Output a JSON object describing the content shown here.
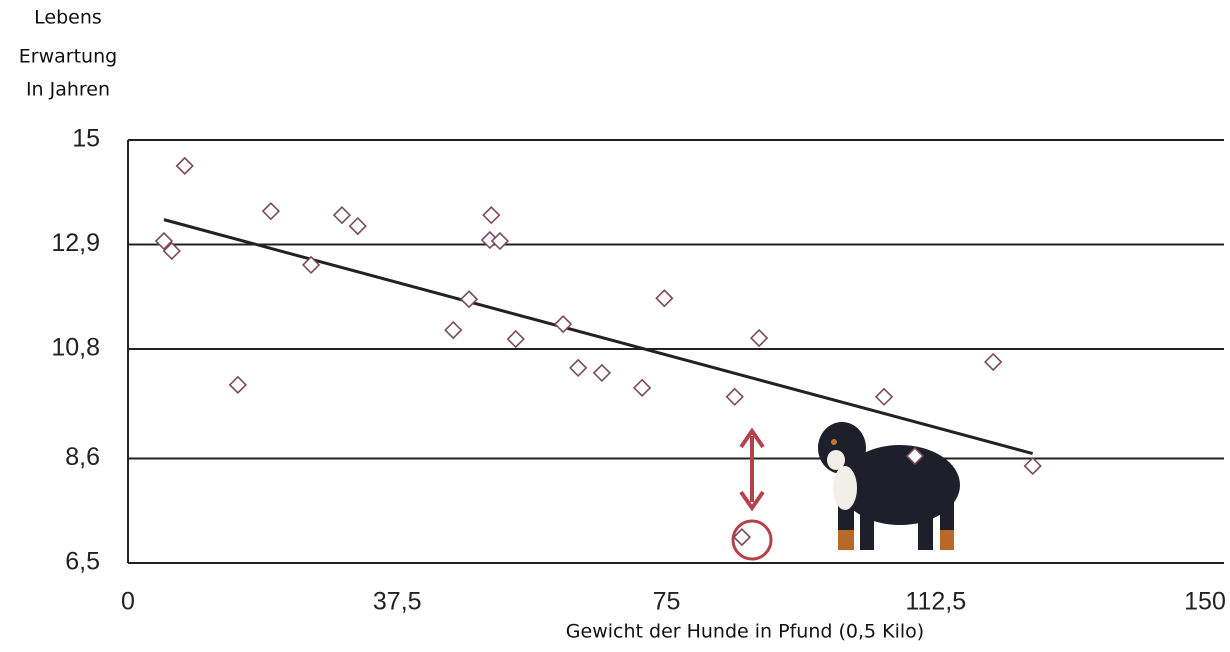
{
  "chart_data": {
    "type": "scatter",
    "ylabel": [
      "Lebens",
      "Erwartung",
      "In Jahren"
    ],
    "xlabel": "Gewicht der Hunde in Pfund (0,5 Kilo)",
    "x": [
      5.0,
      6.1,
      7.9,
      15.3,
      19.9,
      25.5,
      29.8,
      32.0,
      45.3,
      47.5,
      50.6,
      50.4,
      51.8,
      54.0,
      60.6,
      62.7,
      66.0,
      71.6,
      74.7,
      84.5,
      87.9,
      85.5,
      105.3,
      109.6,
      120.5,
      126.0
    ],
    "values": [
      12.97,
      12.77,
      14.48,
      10.08,
      13.57,
      12.49,
      13.49,
      13.27,
      11.18,
      11.8,
      13.49,
      12.99,
      12.97,
      11.0,
      11.3,
      10.42,
      10.32,
      10.02,
      11.82,
      9.84,
      11.02,
      7.02,
      9.84,
      8.65,
      10.54,
      8.45
    ],
    "color": "#7b4b5e",
    "trend": {
      "x": [
        5.0,
        126.0
      ],
      "values": [
        13.4,
        8.7
      ],
      "color": "#222222"
    },
    "xlim": [
      0,
      150
    ],
    "ylim": [
      6.5,
      15
    ],
    "xticks": [
      0,
      {
        "value": 37.5,
        "label": "37,5"
      },
      75,
      {
        "value": 112.5,
        "label": "112,5"
      },
      150
    ],
    "yticks": [
      {
        "value": 6.5,
        "label": "6,5"
      },
      {
        "value": 8.6,
        "label": "8,6"
      },
      {
        "value": 10.8,
        "label": "10,8"
      },
      {
        "value": 12.9,
        "label": "12,9"
      },
      15
    ],
    "grid": true
  }
}
